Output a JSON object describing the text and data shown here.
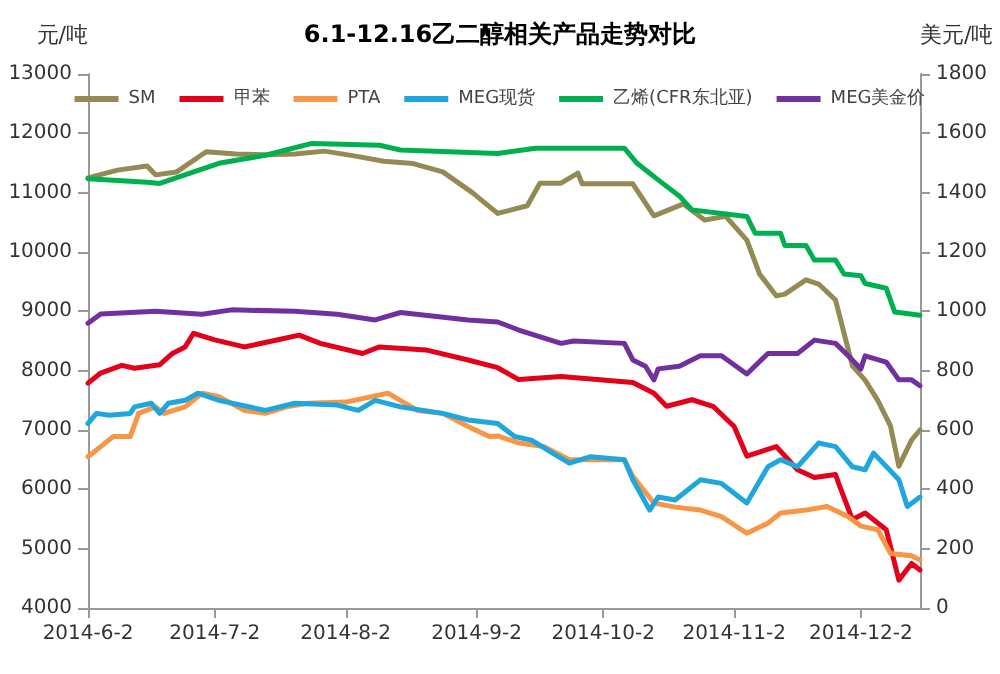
{
  "chart_data": {
    "type": "line",
    "title": "6.1-12.16乙二醇相关产品走势对比",
    "ylabel": "元/吨",
    "y2label": "美元/吨",
    "xlim": [
      "2014-06-02",
      "2014-12-16"
    ],
    "xticks": [
      {
        "value": "2014-06-02",
        "label": "2014-6-2"
      },
      {
        "value": "2014-07-02",
        "label": "2014-7-2"
      },
      {
        "value": "2014-08-02",
        "label": "2014-8-2"
      },
      {
        "value": "2014-09-02",
        "label": "2014-9-2"
      },
      {
        "value": "2014-10-02",
        "label": "2014-10-2"
      },
      {
        "value": "2014-11-02",
        "label": "2014-11-2"
      },
      {
        "value": "2014-12-02",
        "label": "2014-12-2"
      }
    ],
    "ylim": [
      4000,
      13000
    ],
    "yticks": [
      4000,
      5000,
      6000,
      7000,
      8000,
      9000,
      10000,
      11000,
      12000,
      13000
    ],
    "y2lim": [
      0,
      1800
    ],
    "y2ticks": [
      0,
      200,
      400,
      600,
      800,
      1000,
      1200,
      1400,
      1600,
      1800
    ],
    "grid": false,
    "legend": "top",
    "marker": "none",
    "line_style": "solid",
    "series": [
      {
        "name": "SM",
        "color": "#948a54",
        "x": [
          "2014-06-02",
          "2014-06-09",
          "2014-06-16",
          "2014-06-18",
          "2014-06-23",
          "2014-06-30",
          "2014-07-07",
          "2014-07-14",
          "2014-07-21",
          "2014-07-28",
          "2014-08-04",
          "2014-08-11",
          "2014-08-18",
          "2014-08-25",
          "2014-09-01",
          "2014-09-07",
          "2014-09-14",
          "2014-09-17",
          "2014-09-22",
          "2014-09-26",
          "2014-09-27",
          "2014-10-09",
          "2014-10-14",
          "2014-10-21",
          "2014-10-26",
          "2014-10-31",
          "2014-11-05",
          "2014-11-08",
          "2014-11-12",
          "2014-11-14",
          "2014-11-19",
          "2014-11-22",
          "2014-11-26",
          "2014-11-30",
          "2014-12-03",
          "2014-12-06",
          "2014-12-09",
          "2014-12-11",
          "2014-12-14",
          "2014-12-16"
        ],
        "values": [
          11250,
          11380,
          11450,
          11300,
          11350,
          11690,
          11650,
          11640,
          11650,
          11700,
          11620,
          11530,
          11490,
          11350,
          11000,
          10650,
          10780,
          11160,
          11160,
          11330,
          11150,
          11150,
          10610,
          10810,
          10540,
          10600,
          10200,
          9630,
          9260,
          9290,
          9530,
          9460,
          9190,
          8080,
          7840,
          7500,
          7070,
          6390,
          6830,
          7000
        ]
      },
      {
        "name": "甲苯",
        "color": "#e2001a",
        "x": [
          "2014-06-02",
          "2014-06-05",
          "2014-06-10",
          "2014-06-13",
          "2014-06-19",
          "2014-06-22",
          "2014-06-25",
          "2014-06-27",
          "2014-07-02",
          "2014-07-09",
          "2014-07-17",
          "2014-07-22",
          "2014-07-27",
          "2014-08-06",
          "2014-08-10",
          "2014-08-21",
          "2014-08-31",
          "2014-09-07",
          "2014-09-12",
          "2014-09-22",
          "2014-10-09",
          "2014-10-14",
          "2014-10-17",
          "2014-10-23",
          "2014-10-28",
          "2014-11-02",
          "2014-11-05",
          "2014-11-12",
          "2014-11-17",
          "2014-11-21",
          "2014-11-26",
          "2014-11-27",
          "2014-11-30",
          "2014-12-03",
          "2014-12-08",
          "2014-12-11",
          "2014-12-14",
          "2014-12-16"
        ],
        "values": [
          7790,
          7960,
          8090,
          8040,
          8100,
          8290,
          8400,
          8630,
          8520,
          8400,
          8520,
          8600,
          8460,
          8290,
          8400,
          8350,
          8180,
          8050,
          7850,
          7900,
          7800,
          7620,
          7400,
          7510,
          7400,
          7060,
          6560,
          6720,
          6330,
          6200,
          6250,
          6050,
          5490,
          5600,
          5320,
          4470,
          4750,
          4640
        ]
      },
      {
        "name": "PTA",
        "color": "#f79646",
        "x": [
          "2014-06-02",
          "2014-06-05",
          "2014-06-08",
          "2014-06-12",
          "2014-06-14",
          "2014-06-18",
          "2014-06-20",
          "2014-06-25",
          "2014-06-29",
          "2014-07-03",
          "2014-07-09",
          "2014-07-14",
          "2014-07-19",
          "2014-07-24",
          "2014-08-02",
          "2014-08-12",
          "2014-08-19",
          "2014-08-25",
          "2014-08-31",
          "2014-09-05",
          "2014-09-07",
          "2014-09-12",
          "2014-09-18",
          "2014-09-24",
          "2014-10-07",
          "2014-10-09",
          "2014-10-14",
          "2014-10-19",
          "2014-10-25",
          "2014-10-30",
          "2014-11-05",
          "2014-11-10",
          "2014-11-13",
          "2014-11-19",
          "2014-11-24",
          "2014-11-29",
          "2014-12-02",
          "2014-12-06",
          "2014-12-09",
          "2014-12-14",
          "2014-12-16"
        ],
        "values": [
          6550,
          6720,
          6890,
          6890,
          7280,
          7390,
          7280,
          7390,
          7620,
          7560,
          7330,
          7280,
          7390,
          7450,
          7470,
          7620,
          7330,
          7280,
          7060,
          6890,
          6900,
          6780,
          6720,
          6500,
          6500,
          6220,
          5770,
          5700,
          5650,
          5540,
          5260,
          5430,
          5600,
          5650,
          5710,
          5540,
          5380,
          5320,
          4920,
          4880,
          4810
        ]
      },
      {
        "name": "MEG现货",
        "color": "#1fa6dc",
        "x": [
          "2014-06-02",
          "2014-06-04",
          "2014-06-07",
          "2014-06-12",
          "2014-06-13",
          "2014-06-17",
          "2014-06-19",
          "2014-06-21",
          "2014-06-25",
          "2014-06-28",
          "2014-07-03",
          "2014-07-14",
          "2014-07-21",
          "2014-07-31",
          "2014-08-05",
          "2014-08-09",
          "2014-08-15",
          "2014-08-25",
          "2014-08-31",
          "2014-09-07",
          "2014-09-11",
          "2014-09-15",
          "2014-09-20",
          "2014-09-24",
          "2014-09-29",
          "2014-10-07",
          "2014-10-09",
          "2014-10-13",
          "2014-10-15",
          "2014-10-19",
          "2014-10-25",
          "2014-10-30",
          "2014-11-05",
          "2014-11-10",
          "2014-11-13",
          "2014-11-17",
          "2014-11-22",
          "2014-11-26",
          "2014-11-30",
          "2014-12-03",
          "2014-12-05",
          "2014-12-11",
          "2014-12-13",
          "2014-12-16"
        ],
        "values": [
          7110,
          7280,
          7250,
          7280,
          7390,
          7450,
          7280,
          7450,
          7500,
          7620,
          7500,
          7330,
          7450,
          7420,
          7330,
          7500,
          7390,
          7280,
          7170,
          7110,
          6890,
          6830,
          6610,
          6440,
          6550,
          6500,
          6160,
          5650,
          5870,
          5820,
          6160,
          6100,
          5770,
          6380,
          6500,
          6380,
          6780,
          6720,
          6380,
          6330,
          6610,
          6160,
          5710,
          5870
        ]
      },
      {
        "name": "乙烯(CFR东北亚)",
        "color": "#00b050",
        "axis": "y2",
        "x": [
          "2014-06-02",
          "2014-06-16",
          "2014-06-19",
          "2014-06-26",
          "2014-07-03",
          "2014-07-14",
          "2014-07-25",
          "2014-08-10",
          "2014-08-15",
          "2014-09-07",
          "2014-09-16",
          "2014-10-07",
          "2014-10-10",
          "2014-10-15",
          "2014-10-20",
          "2014-10-23",
          "2014-11-05",
          "2014-11-07",
          "2014-11-13",
          "2014-11-14",
          "2014-11-19",
          "2014-11-21",
          "2014-11-26",
          "2014-11-28",
          "2014-12-02",
          "2014-12-03",
          "2014-12-08",
          "2014-12-10",
          "2014-12-16"
        ],
        "values": [
          1447,
          1435,
          1431,
          1465,
          1499,
          1526,
          1566,
          1560,
          1544,
          1532,
          1550,
          1550,
          1499,
          1443,
          1389,
          1342,
          1320,
          1263,
          1263,
          1222,
          1222,
          1173,
          1173,
          1126,
          1120,
          1094,
          1078,
          998,
          987
        ]
      },
      {
        "name": "MEG美金价",
        "color": "#7030a0",
        "axis": "y2",
        "x": [
          "2014-06-02",
          "2014-06-05",
          "2014-06-18",
          "2014-06-29",
          "2014-07-06",
          "2014-07-21",
          "2014-07-31",
          "2014-08-09",
          "2014-08-15",
          "2014-08-31",
          "2014-09-07",
          "2014-09-12",
          "2014-09-22",
          "2014-09-25",
          "2014-10-07",
          "2014-10-09",
          "2014-10-12",
          "2014-10-14",
          "2014-10-15",
          "2014-10-20",
          "2014-10-25",
          "2014-10-30",
          "2014-11-05",
          "2014-11-10",
          "2014-11-17",
          "2014-11-21",
          "2014-11-26",
          "2014-11-29",
          "2014-12-02",
          "2014-12-03",
          "2014-12-08",
          "2014-12-11",
          "2014-12-14",
          "2014-12-16"
        ],
        "values": [
          960,
          991,
          1000,
          990,
          1005,
          1000,
          990,
          971,
          996,
          971,
          964,
          937,
          892,
          900,
          892,
          836,
          815,
          769,
          806,
          815,
          850,
          850,
          789,
          858,
          858,
          903,
          892,
          850,
          806,
          850,
          829,
          769,
          769,
          749
        ]
      }
    ]
  }
}
